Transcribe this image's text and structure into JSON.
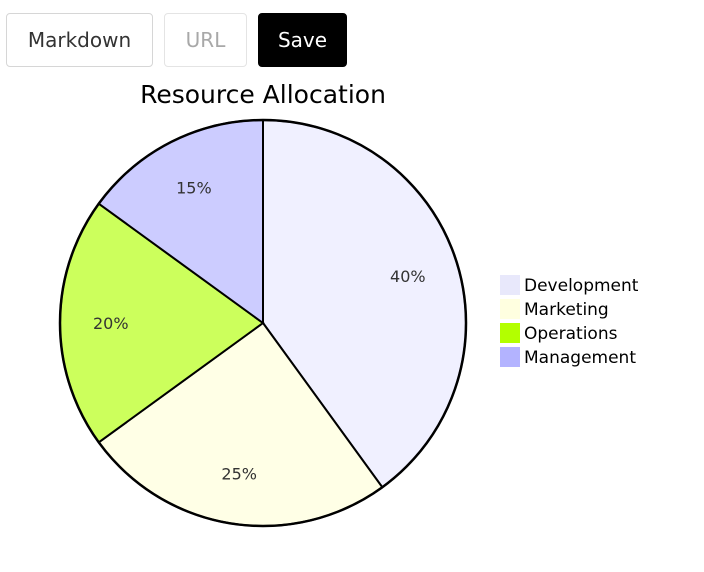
{
  "toolbar": {
    "markdown_label": "Markdown",
    "url_label": "URL",
    "save_label": "Save"
  },
  "chart_data": {
    "type": "pie",
    "title": "Resource Allocation",
    "categories": [
      "Development",
      "Marketing",
      "Operations",
      "Management"
    ],
    "values": [
      40,
      25,
      20,
      15
    ],
    "slice_labels": [
      "40%",
      "25%",
      "20%",
      "15%"
    ],
    "colors": [
      "#f0f0ff",
      "#ffffe6",
      "#ccff5c",
      "#ccccff"
    ],
    "legend_colors": [
      "#e8e8fb",
      "#ffffe0",
      "#b3ff00",
      "#b3b3ff"
    ],
    "legend_position": "right"
  }
}
